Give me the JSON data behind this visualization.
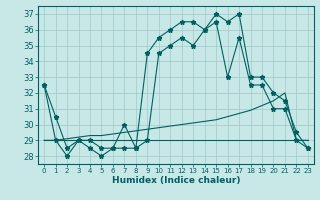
{
  "xlabel": "Humidex (Indice chaleur)",
  "bg_color": "#c8e8e8",
  "grid_color": "#a0c8c8",
  "line_color": "#006060",
  "xlim": [
    -0.5,
    23.5
  ],
  "ylim": [
    27.5,
    37.5
  ],
  "yticks": [
    28,
    29,
    30,
    31,
    32,
    33,
    34,
    35,
    36,
    37
  ],
  "xticks": [
    0,
    1,
    2,
    3,
    4,
    5,
    6,
    7,
    8,
    9,
    10,
    11,
    12,
    13,
    14,
    15,
    16,
    17,
    18,
    19,
    20,
    21,
    22,
    23
  ],
  "series_max": [
    32.5,
    30.5,
    28.5,
    29.0,
    29.0,
    28.5,
    28.5,
    30.0,
    28.5,
    34.5,
    35.5,
    36.0,
    36.5,
    36.5,
    36.0,
    37.0,
    36.5,
    37.0,
    33.0,
    33.0,
    32.0,
    31.5,
    29.5,
    28.5
  ],
  "series_min": [
    32.5,
    29.0,
    28.0,
    29.0,
    28.5,
    28.0,
    28.5,
    28.5,
    28.5,
    29.0,
    34.5,
    35.0,
    35.5,
    35.0,
    36.0,
    36.5,
    33.0,
    35.5,
    32.5,
    32.5,
    31.0,
    31.0,
    29.0,
    28.5
  ],
  "series_trend1": [
    29.0,
    29.0,
    29.1,
    29.2,
    29.3,
    29.3,
    29.4,
    29.5,
    29.6,
    29.7,
    29.8,
    29.9,
    30.0,
    30.1,
    30.2,
    30.3,
    30.5,
    30.7,
    30.9,
    31.2,
    31.5,
    32.0,
    29.0,
    29.0
  ],
  "series_trend2": [
    29.0,
    29.0,
    29.0,
    29.0,
    29.0,
    29.0,
    29.0,
    29.0,
    29.0,
    29.0,
    29.0,
    29.0,
    29.0,
    29.0,
    29.0,
    29.0,
    29.0,
    29.0,
    29.0,
    29.0,
    29.0,
    29.0,
    29.0,
    29.0
  ]
}
